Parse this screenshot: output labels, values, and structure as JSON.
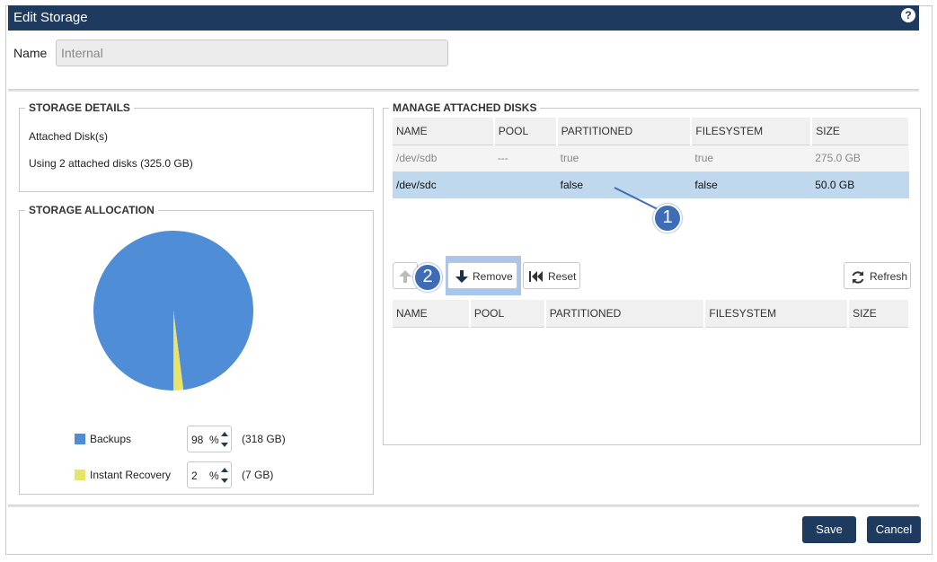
{
  "dialog": {
    "title": "Edit Storage",
    "help": "?"
  },
  "name_field": {
    "label": "Name",
    "value": "Internal"
  },
  "storage_details": {
    "legend": "STORAGE DETAILS",
    "line1": "Attached Disk(s)",
    "line2": "Using 2 attached disks (325.0 GB)"
  },
  "storage_allocation": {
    "legend": "STORAGE ALLOCATION",
    "items": [
      {
        "label": "Backups",
        "value": "98",
        "unit": "%",
        "size": "(318 GB)",
        "color": "#4f8ed6"
      },
      {
        "label": "Instant Recovery",
        "value": "2",
        "unit": "%",
        "size": "(7 GB)",
        "color": "#e8e46a"
      }
    ],
    "share_percent": [
      98,
      2
    ]
  },
  "manage_disks": {
    "legend": "MANAGE ATTACHED DISKS",
    "attached_columns": [
      "NAME",
      "POOL",
      "PARTITIONED",
      "FILESYSTEM",
      "SIZE"
    ],
    "attached_rows": [
      {
        "name": "/dev/sdb",
        "pool": "---",
        "partitioned": "true",
        "filesystem": "true",
        "size": "275.0 GB",
        "state": "disabled"
      },
      {
        "name": "/dev/sdc",
        "pool": "",
        "partitioned": "false",
        "filesystem": "false",
        "size": "50.0 GB",
        "state": "selected"
      }
    ],
    "buttons": {
      "remove": "Remove",
      "reset": "Reset",
      "refresh": "Refresh"
    },
    "pending_columns": [
      "NAME",
      "POOL",
      "PARTITIONED",
      "FILESYSTEM",
      "SIZE"
    ]
  },
  "callouts": [
    "1",
    "2"
  ],
  "footer": {
    "save": "Save",
    "cancel": "Cancel"
  },
  "colors": {
    "header": "#1f3a5f",
    "selected_row": "#c0d8ee",
    "highlight": "#aac6ec"
  }
}
